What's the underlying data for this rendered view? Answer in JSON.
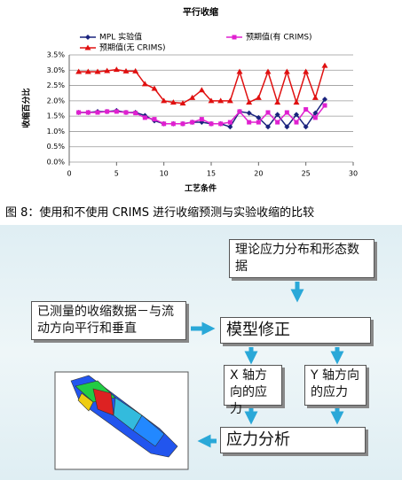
{
  "chart_data": {
    "type": "line",
    "title": "平行收缩",
    "x_label": "工艺条件",
    "y_label": "收缩百分比",
    "x": [
      1,
      2,
      3,
      4,
      5,
      6,
      7,
      8,
      9,
      10,
      11,
      12,
      13,
      14,
      15,
      16,
      17,
      18,
      19,
      20,
      21,
      22,
      23,
      24,
      25,
      26,
      27
    ],
    "series": [
      {
        "name": "MPL 实验值",
        "color": "#1a237e",
        "marker": "diamond",
        "values": [
          1.62,
          1.62,
          1.65,
          1.65,
          1.68,
          1.62,
          1.62,
          1.52,
          1.35,
          1.25,
          1.25,
          1.25,
          1.3,
          1.3,
          1.25,
          1.25,
          1.15,
          1.65,
          1.6,
          1.45,
          1.15,
          1.55,
          1.15,
          1.55,
          1.15,
          1.6,
          2.05
        ]
      },
      {
        "name": "预期值(有 CRIMS)",
        "color": "#e020d0",
        "marker": "square",
        "values": [
          1.62,
          1.62,
          1.62,
          1.65,
          1.65,
          1.62,
          1.6,
          1.45,
          1.4,
          1.25,
          1.25,
          1.25,
          1.3,
          1.4,
          1.25,
          1.25,
          1.3,
          1.65,
          1.3,
          1.3,
          1.62,
          1.3,
          1.62,
          1.3,
          1.72,
          1.45,
          1.85
        ]
      },
      {
        "name": "预期值(无 CRIMS)",
        "color": "#e01010",
        "marker": "triangle",
        "values": [
          2.95,
          2.95,
          2.95,
          2.98,
          3.02,
          2.97,
          2.97,
          2.55,
          2.4,
          2.0,
          1.95,
          1.92,
          2.1,
          2.35,
          2.0,
          2.0,
          2.0,
          2.95,
          1.95,
          2.1,
          2.95,
          1.95,
          2.95,
          1.95,
          2.95,
          2.1,
          3.15
        ]
      }
    ],
    "xlim": [
      0,
      30
    ],
    "xticks": [
      0,
      5,
      10,
      15,
      20,
      25,
      30
    ],
    "ylim": [
      0,
      3.5
    ],
    "yticks": [
      {
        "value": 0,
        "label": "0.0%"
      },
      {
        "value": 0.5,
        "label": "0.5%"
      },
      {
        "value": 1,
        "label": "1.0%"
      },
      {
        "value": 1.5,
        "label": "1.5%"
      },
      {
        "value": 2,
        "label": "2.0%"
      },
      {
        "value": 2.5,
        "label": "2.5%"
      },
      {
        "value": 3,
        "label": "3.0%"
      },
      {
        "value": 3.5,
        "label": "3.5%"
      }
    ],
    "grid": true,
    "legend": "top"
  },
  "caption": "图 8：使用和不使用 CRIMS 进行收缩预测与实验收缩的比较",
  "diagram": {
    "nodes": [
      {
        "label": "理论应力分布和形态数据"
      },
      {
        "label": "已测量的收缩数据－与流动方向平行和垂直"
      },
      {
        "label": "模型修正"
      },
      {
        "label": "X 轴方向的应力"
      },
      {
        "label": "Y 轴方向的应力"
      },
      {
        "label": "应力分析"
      }
    ]
  }
}
